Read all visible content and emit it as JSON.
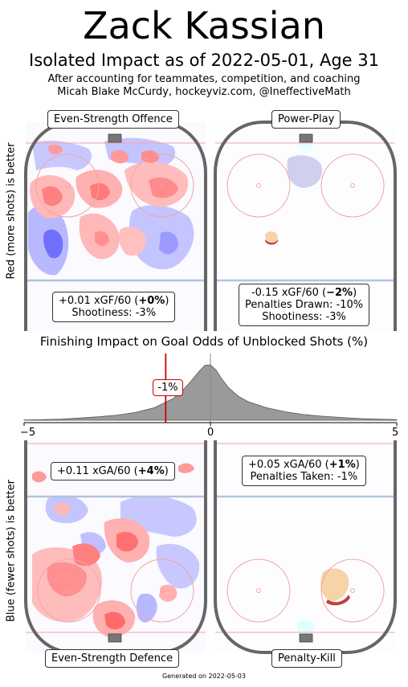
{
  "title": "Zack Kassian",
  "subtitle": "Isolated Impact as of 2022-05-01, Age 31",
  "notes": [
    "After accounting for teammates, competition, and coaching",
    "Micah Blake McCurdy, hockeyviz.com, @IneffectiveMath"
  ],
  "ylabel_top": "Red (more shots) is better",
  "ylabel_bottom": "Blue (fewer shots) is better",
  "footer": "Generated on 2022-05-03",
  "colors": {
    "boards": "#666666",
    "blue_line": "#b0c4de",
    "red_line": "#f4a3a3",
    "positive": "#ff6f6f",
    "negative": "#6f6fff",
    "density": "#9a9a9a",
    "marker": "#cc0000"
  },
  "panels": {
    "ev_offence": {
      "label": "Even-Strength Offence",
      "stat_prefix": "+0.01 xGF/60 (",
      "stat_pct": "+0%",
      "stat_suffix": ")",
      "line2": "Shootiness: -3%"
    },
    "pp": {
      "label": "Power-Play",
      "stat_prefix": "-0.15 xGF/60 (",
      "stat_pct": "−2%",
      "stat_suffix": ")",
      "line2": "Penalties Drawn: -10%",
      "line3": "Shootiness: -3%"
    },
    "ev_defence": {
      "label": "Even-Strength Defence",
      "stat_prefix": "+0.11 xGA/60 (",
      "stat_pct": "+4%",
      "stat_suffix": ")"
    },
    "pk": {
      "label": "Penalty-Kill",
      "stat_prefix": "+0.05 xGA/60 (",
      "stat_pct": "+1%",
      "stat_suffix": ")",
      "line2": "Penalties Taken: -1%"
    }
  },
  "chart_data": {
    "type": "area",
    "title": "Finishing Impact on Goal Odds of Unblocked Shots (%)",
    "xlim": [
      -5,
      5
    ],
    "xticks": [
      "−5",
      "0",
      "5"
    ],
    "marker_value": -1.2,
    "marker_label": "-1%",
    "density": {
      "x": [
        -5,
        -4.5,
        -4,
        -3.5,
        -3,
        -2.5,
        -2,
        -1.5,
        -1,
        -0.75,
        -0.5,
        -0.3,
        -0.15,
        0,
        0.15,
        0.3,
        0.5,
        0.75,
        1,
        1.5,
        2,
        2.5,
        3,
        3.5,
        4,
        4.5,
        5
      ],
      "y": [
        0.005,
        0.01,
        0.02,
        0.04,
        0.06,
        0.09,
        0.14,
        0.22,
        0.38,
        0.52,
        0.7,
        0.86,
        0.96,
        0.97,
        0.88,
        0.73,
        0.56,
        0.42,
        0.33,
        0.22,
        0.15,
        0.1,
        0.07,
        0.05,
        0.03,
        0.02,
        0.01
      ]
    }
  }
}
